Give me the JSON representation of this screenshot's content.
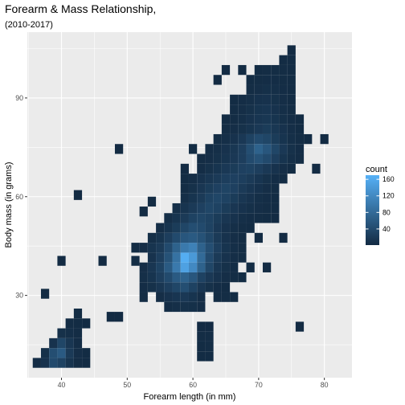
{
  "chart_data": {
    "type": "heatmap",
    "title": "Forearm & Mass Relationship,",
    "subtitle": "(2010-2017)",
    "xlabel": "Forearm length (in mm)",
    "ylabel": "Body mass (in grams)",
    "xlim": [
      34.8,
      84.2
    ],
    "ylim": [
      5.0,
      110.0
    ],
    "x_ticks": [
      40,
      50,
      60,
      70,
      80
    ],
    "y_ticks": [
      30,
      60,
      90
    ],
    "bin_width": {
      "x": 1.25,
      "y": 3.0
    },
    "grid": true,
    "legend": {
      "title": "count",
      "position": "right",
      "ticks": [
        40,
        80,
        120,
        160
      ],
      "range": [
        1,
        170
      ],
      "low_color": "#132B43",
      "high_color": "#56B1F7"
    },
    "cells": [
      [
        36.25,
        9.5,
        4
      ],
      [
        37.5,
        9.5,
        10
      ],
      [
        38.75,
        9.5,
        40
      ],
      [
        40.0,
        9.5,
        30
      ],
      [
        41.25,
        9.5,
        12
      ],
      [
        42.5,
        9.5,
        3
      ],
      [
        43.75,
        9.5,
        2
      ],
      [
        37.5,
        12.5,
        8
      ],
      [
        38.75,
        12.5,
        45
      ],
      [
        40.0,
        12.5,
        60
      ],
      [
        41.25,
        12.5,
        20
      ],
      [
        42.5,
        12.5,
        5
      ],
      [
        43.75,
        12.5,
        2
      ],
      [
        38.75,
        15.5,
        10
      ],
      [
        40.0,
        15.5,
        35
      ],
      [
        41.25,
        15.5,
        15
      ],
      [
        42.5,
        15.5,
        4
      ],
      [
        40.0,
        18.5,
        8
      ],
      [
        41.25,
        18.5,
        6
      ],
      [
        42.5,
        18.5,
        3
      ],
      [
        41.25,
        21.5,
        3
      ],
      [
        42.5,
        21.5,
        2
      ],
      [
        43.75,
        21.5,
        1
      ],
      [
        42.5,
        24.5,
        2
      ],
      [
        37.5,
        30.5,
        1
      ],
      [
        47.5,
        23.5,
        1
      ],
      [
        48.75,
        23.5,
        1
      ],
      [
        76.25,
        20.5,
        1
      ],
      [
        61.25,
        11.5,
        2
      ],
      [
        62.5,
        11.5,
        2
      ],
      [
        61.25,
        14.5,
        2
      ],
      [
        62.5,
        14.5,
        3
      ],
      [
        61.25,
        17.5,
        3
      ],
      [
        62.5,
        17.5,
        3
      ],
      [
        61.25,
        20.5,
        1
      ],
      [
        62.5,
        20.5,
        1
      ],
      [
        56.25,
        26.5,
        4
      ],
      [
        57.5,
        26.5,
        6
      ],
      [
        58.75,
        26.5,
        8
      ],
      [
        60.0,
        26.5,
        7
      ],
      [
        61.25,
        26.5,
        4
      ],
      [
        52.5,
        29.5,
        3
      ],
      [
        55.0,
        29.5,
        5
      ],
      [
        56.25,
        29.5,
        10
      ],
      [
        57.5,
        29.5,
        14
      ],
      [
        58.75,
        29.5,
        18
      ],
      [
        60.0,
        29.5,
        12
      ],
      [
        61.25,
        29.5,
        5
      ],
      [
        63.75,
        29.5,
        3
      ],
      [
        65.0,
        29.5,
        3
      ],
      [
        66.25,
        29.5,
        2
      ],
      [
        52.5,
        32.5,
        4
      ],
      [
        53.75,
        32.5,
        8
      ],
      [
        55.0,
        32.5,
        15
      ],
      [
        56.25,
        32.5,
        25
      ],
      [
        57.5,
        32.5,
        35
      ],
      [
        58.75,
        32.5,
        45
      ],
      [
        60.0,
        32.5,
        30
      ],
      [
        61.25,
        32.5,
        15
      ],
      [
        62.5,
        32.5,
        8
      ],
      [
        63.75,
        32.5,
        4
      ],
      [
        65.0,
        32.5,
        2
      ],
      [
        52.5,
        35.5,
        6
      ],
      [
        53.75,
        35.5,
        12
      ],
      [
        55.0,
        35.5,
        25
      ],
      [
        56.25,
        35.5,
        40
      ],
      [
        57.5,
        35.5,
        60
      ],
      [
        58.75,
        35.5,
        70
      ],
      [
        60.0,
        35.5,
        55
      ],
      [
        61.25,
        35.5,
        30
      ],
      [
        62.5,
        35.5,
        18
      ],
      [
        63.75,
        35.5,
        10
      ],
      [
        65.0,
        35.5,
        5
      ],
      [
        66.25,
        35.5,
        3
      ],
      [
        67.5,
        35.5,
        2
      ],
      [
        52.5,
        38.5,
        5
      ],
      [
        53.75,
        38.5,
        15
      ],
      [
        55.0,
        38.5,
        30
      ],
      [
        56.25,
        38.5,
        60
      ],
      [
        57.5,
        38.5,
        100
      ],
      [
        58.75,
        38.5,
        150
      ],
      [
        60.0,
        38.5,
        120
      ],
      [
        61.25,
        38.5,
        70
      ],
      [
        62.5,
        38.5,
        35
      ],
      [
        63.75,
        38.5,
        15
      ],
      [
        65.0,
        38.5,
        8
      ],
      [
        66.25,
        38.5,
        4
      ],
      [
        68.75,
        38.5,
        2
      ],
      [
        71.25,
        38.5,
        1
      ],
      [
        40.0,
        40.5,
        1
      ],
      [
        46.25,
        40.5,
        1
      ],
      [
        51.25,
        40.5,
        3
      ],
      [
        53.75,
        41.5,
        10
      ],
      [
        55.0,
        41.5,
        25
      ],
      [
        56.25,
        41.5,
        50
      ],
      [
        57.5,
        41.5,
        90
      ],
      [
        58.75,
        41.5,
        165
      ],
      [
        60.0,
        41.5,
        140
      ],
      [
        61.25,
        41.5,
        80
      ],
      [
        62.5,
        41.5,
        40
      ],
      [
        63.75,
        41.5,
        20
      ],
      [
        65.0,
        41.5,
        10
      ],
      [
        66.25,
        41.5,
        5
      ],
      [
        67.5,
        41.5,
        3
      ],
      [
        51.25,
        44.5,
        2
      ],
      [
        52.5,
        44.5,
        5
      ],
      [
        53.75,
        44.5,
        12
      ],
      [
        55.0,
        44.5,
        20
      ],
      [
        56.25,
        44.5,
        40
      ],
      [
        57.5,
        44.5,
        70
      ],
      [
        58.75,
        44.5,
        100
      ],
      [
        60.0,
        44.5,
        110
      ],
      [
        61.25,
        44.5,
        70
      ],
      [
        62.5,
        44.5,
        45
      ],
      [
        63.75,
        44.5,
        25
      ],
      [
        65.0,
        44.5,
        12
      ],
      [
        66.25,
        44.5,
        6
      ],
      [
        67.5,
        44.5,
        3
      ],
      [
        53.75,
        47.5,
        6
      ],
      [
        55.0,
        47.5,
        12
      ],
      [
        56.25,
        47.5,
        25
      ],
      [
        57.5,
        47.5,
        40
      ],
      [
        58.75,
        47.5,
        55
      ],
      [
        60.0,
        47.5,
        60
      ],
      [
        61.25,
        47.5,
        50
      ],
      [
        62.5,
        47.5,
        35
      ],
      [
        63.75,
        47.5,
        20
      ],
      [
        65.0,
        47.5,
        10
      ],
      [
        66.25,
        47.5,
        5
      ],
      [
        67.5,
        47.5,
        2
      ],
      [
        70.0,
        47.5,
        1
      ],
      [
        73.75,
        47.5,
        1
      ],
      [
        55.0,
        50.5,
        5
      ],
      [
        56.25,
        50.5,
        12
      ],
      [
        57.5,
        50.5,
        22
      ],
      [
        58.75,
        50.5,
        35
      ],
      [
        60.0,
        50.5,
        45
      ],
      [
        61.25,
        50.5,
        40
      ],
      [
        62.5,
        50.5,
        30
      ],
      [
        63.75,
        50.5,
        18
      ],
      [
        65.0,
        50.5,
        10
      ],
      [
        66.25,
        50.5,
        6
      ],
      [
        67.5,
        50.5,
        3
      ],
      [
        68.75,
        50.5,
        2
      ],
      [
        56.25,
        53.5,
        6
      ],
      [
        57.5,
        53.5,
        12
      ],
      [
        58.75,
        53.5,
        20
      ],
      [
        60.0,
        53.5,
        30
      ],
      [
        61.25,
        53.5,
        35
      ],
      [
        62.5,
        53.5,
        30
      ],
      [
        63.75,
        53.5,
        22
      ],
      [
        65.0,
        53.5,
        15
      ],
      [
        66.25,
        53.5,
        10
      ],
      [
        67.5,
        53.5,
        6
      ],
      [
        68.75,
        53.5,
        4
      ],
      [
        70.0,
        53.5,
        3
      ],
      [
        71.25,
        53.5,
        2
      ],
      [
        72.5,
        53.5,
        1
      ],
      [
        52.5,
        55.5,
        1
      ],
      [
        57.5,
        56.5,
        6
      ],
      [
        58.75,
        56.5,
        12
      ],
      [
        60.0,
        56.5,
        20
      ],
      [
        61.25,
        56.5,
        28
      ],
      [
        62.5,
        56.5,
        35
      ],
      [
        63.75,
        56.5,
        30
      ],
      [
        65.0,
        56.5,
        22
      ],
      [
        66.25,
        56.5,
        15
      ],
      [
        67.5,
        56.5,
        10
      ],
      [
        68.75,
        56.5,
        7
      ],
      [
        70.0,
        56.5,
        5
      ],
      [
        71.25,
        56.5,
        3
      ],
      [
        72.5,
        56.5,
        2
      ],
      [
        53.75,
        58.5,
        1
      ],
      [
        42.5,
        60.5,
        1
      ],
      [
        58.75,
        59.5,
        6
      ],
      [
        60.0,
        59.5,
        12
      ],
      [
        61.25,
        59.5,
        20
      ],
      [
        62.5,
        59.5,
        30
      ],
      [
        63.75,
        59.5,
        35
      ],
      [
        65.0,
        59.5,
        30
      ],
      [
        66.25,
        59.5,
        22
      ],
      [
        67.5,
        59.5,
        15
      ],
      [
        68.75,
        59.5,
        10
      ],
      [
        70.0,
        59.5,
        6
      ],
      [
        71.25,
        59.5,
        4
      ],
      [
        72.5,
        59.5,
        2
      ],
      [
        58.75,
        62.5,
        3
      ],
      [
        60.0,
        62.5,
        8
      ],
      [
        61.25,
        62.5,
        15
      ],
      [
        62.5,
        62.5,
        22
      ],
      [
        63.75,
        62.5,
        28
      ],
      [
        65.0,
        62.5,
        32
      ],
      [
        66.25,
        62.5,
        28
      ],
      [
        67.5,
        62.5,
        20
      ],
      [
        68.75,
        62.5,
        14
      ],
      [
        70.0,
        62.5,
        9
      ],
      [
        71.25,
        62.5,
        5
      ],
      [
        72.5,
        62.5,
        3
      ],
      [
        58.75,
        65.5,
        2
      ],
      [
        60.0,
        65.5,
        5
      ],
      [
        61.25,
        65.5,
        10
      ],
      [
        62.5,
        65.5,
        15
      ],
      [
        63.75,
        65.5,
        20
      ],
      [
        65.0,
        65.5,
        25
      ],
      [
        66.25,
        65.5,
        28
      ],
      [
        67.5,
        65.5,
        25
      ],
      [
        68.75,
        65.5,
        20
      ],
      [
        70.0,
        65.5,
        14
      ],
      [
        71.25,
        65.5,
        8
      ],
      [
        72.5,
        65.5,
        4
      ],
      [
        73.75,
        65.5,
        2
      ],
      [
        58.75,
        68.5,
        1
      ],
      [
        61.25,
        68.5,
        4
      ],
      [
        62.5,
        68.5,
        8
      ],
      [
        63.75,
        68.5,
        12
      ],
      [
        65.0,
        68.5,
        18
      ],
      [
        66.25,
        68.5,
        22
      ],
      [
        67.5,
        68.5,
        28
      ],
      [
        68.75,
        68.5,
        30
      ],
      [
        70.0,
        68.5,
        25
      ],
      [
        71.25,
        68.5,
        18
      ],
      [
        72.5,
        68.5,
        10
      ],
      [
        73.75,
        68.5,
        5
      ],
      [
        75.0,
        68.5,
        2
      ],
      [
        78.75,
        68.5,
        1
      ],
      [
        61.25,
        71.5,
        3
      ],
      [
        62.5,
        71.5,
        5
      ],
      [
        63.75,
        71.5,
        8
      ],
      [
        65.0,
        71.5,
        12
      ],
      [
        66.25,
        71.5,
        18
      ],
      [
        67.5,
        71.5,
        25
      ],
      [
        68.75,
        71.5,
        40
      ],
      [
        70.0,
        71.5,
        50
      ],
      [
        71.25,
        71.5,
        40
      ],
      [
        72.5,
        71.5,
        25
      ],
      [
        73.75,
        71.5,
        12
      ],
      [
        75.0,
        71.5,
        6
      ],
      [
        76.25,
        71.5,
        3
      ],
      [
        48.75,
        74.5,
        1
      ],
      [
        60.0,
        74.5,
        2
      ],
      [
        62.5,
        74.5,
        4
      ],
      [
        63.75,
        74.5,
        6
      ],
      [
        65.0,
        74.5,
        10
      ],
      [
        66.25,
        74.5,
        16
      ],
      [
        67.5,
        74.5,
        25
      ],
      [
        68.75,
        74.5,
        45
      ],
      [
        70.0,
        74.5,
        70
      ],
      [
        71.25,
        74.5,
        55
      ],
      [
        72.5,
        74.5,
        35
      ],
      [
        73.75,
        74.5,
        18
      ],
      [
        75.0,
        74.5,
        8
      ],
      [
        76.25,
        74.5,
        4
      ],
      [
        63.75,
        77.5,
        3
      ],
      [
        65.0,
        77.5,
        6
      ],
      [
        66.25,
        77.5,
        10
      ],
      [
        67.5,
        77.5,
        18
      ],
      [
        68.75,
        77.5,
        30
      ],
      [
        70.0,
        77.5,
        40
      ],
      [
        71.25,
        77.5,
        35
      ],
      [
        72.5,
        77.5,
        22
      ],
      [
        73.75,
        77.5,
        12
      ],
      [
        75.0,
        77.5,
        6
      ],
      [
        76.25,
        77.5,
        3
      ],
      [
        77.5,
        77.5,
        2
      ],
      [
        80.0,
        77.5,
        1
      ],
      [
        65.0,
        80.5,
        3
      ],
      [
        66.25,
        80.5,
        5
      ],
      [
        67.5,
        80.5,
        8
      ],
      [
        68.75,
        80.5,
        12
      ],
      [
        70.0,
        80.5,
        18
      ],
      [
        71.25,
        80.5,
        22
      ],
      [
        72.5,
        80.5,
        16
      ],
      [
        73.75,
        80.5,
        10
      ],
      [
        75.0,
        80.5,
        5
      ],
      [
        76.25,
        80.5,
        2
      ],
      [
        65.0,
        83.5,
        2
      ],
      [
        66.25,
        83.5,
        3
      ],
      [
        67.5,
        83.5,
        6
      ],
      [
        68.75,
        83.5,
        10
      ],
      [
        70.0,
        83.5,
        14
      ],
      [
        71.25,
        83.5,
        16
      ],
      [
        72.5,
        83.5,
        12
      ],
      [
        73.75,
        83.5,
        7
      ],
      [
        75.0,
        83.5,
        4
      ],
      [
        76.25,
        83.5,
        2
      ],
      [
        66.25,
        86.5,
        3
      ],
      [
        67.5,
        86.5,
        5
      ],
      [
        68.75,
        86.5,
        8
      ],
      [
        70.0,
        86.5,
        12
      ],
      [
        71.25,
        86.5,
        14
      ],
      [
        72.5,
        86.5,
        10
      ],
      [
        73.75,
        86.5,
        6
      ],
      [
        75.0,
        86.5,
        3
      ],
      [
        66.25,
        89.5,
        2
      ],
      [
        67.5,
        89.5,
        4
      ],
      [
        68.75,
        89.5,
        6
      ],
      [
        70.0,
        89.5,
        9
      ],
      [
        71.25,
        89.5,
        10
      ],
      [
        72.5,
        89.5,
        8
      ],
      [
        73.75,
        89.5,
        5
      ],
      [
        75.0,
        89.5,
        2
      ],
      [
        68.75,
        92.5,
        3
      ],
      [
        70.0,
        92.5,
        5
      ],
      [
        71.25,
        92.5,
        7
      ],
      [
        72.5,
        92.5,
        6
      ],
      [
        73.75,
        92.5,
        4
      ],
      [
        75.0,
        92.5,
        2
      ],
      [
        63.75,
        95.5,
        1
      ],
      [
        68.75,
        95.5,
        2
      ],
      [
        70.0,
        95.5,
        3
      ],
      [
        71.25,
        95.5,
        4
      ],
      [
        72.5,
        95.5,
        4
      ],
      [
        73.75,
        95.5,
        3
      ],
      [
        75.0,
        95.5,
        2
      ],
      [
        65.0,
        98.5,
        1
      ],
      [
        67.5,
        98.5,
        1
      ],
      [
        70.0,
        98.5,
        2
      ],
      [
        71.25,
        98.5,
        3
      ],
      [
        72.5,
        98.5,
        3
      ],
      [
        73.75,
        98.5,
        3
      ],
      [
        75.0,
        98.5,
        2
      ],
      [
        73.75,
        101.5,
        2
      ],
      [
        75.0,
        101.5,
        2
      ],
      [
        75.0,
        104.5,
        1
      ]
    ]
  }
}
